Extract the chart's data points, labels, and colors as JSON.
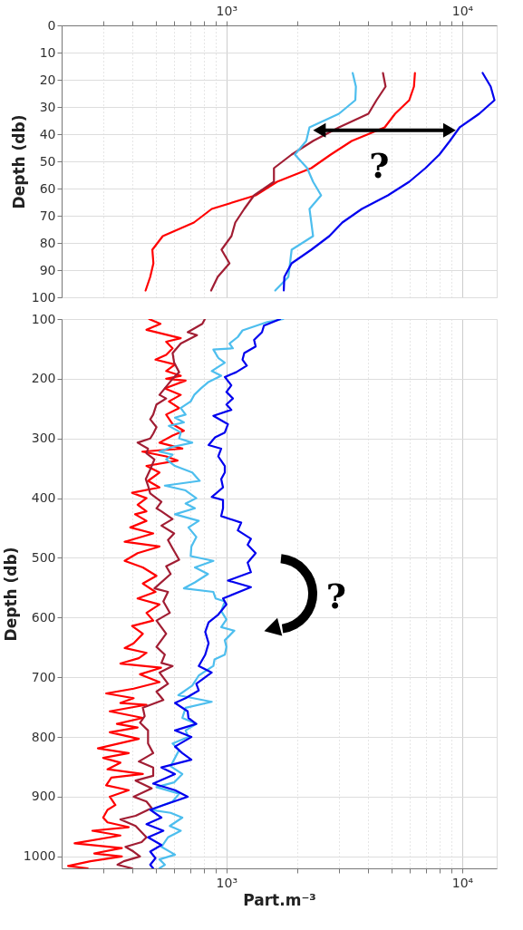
{
  "chart_data": [
    {
      "type": "line",
      "ylabel": "Depth (db)",
      "log": "x",
      "grid": true,
      "marker": "none",
      "line_style": "solid",
      "xlim": [
        200,
        14000
      ],
      "ylim": [
        100,
        0
      ],
      "xticks": [
        {
          "value": 300,
          "label": null
        },
        {
          "value": 400,
          "label": null
        },
        {
          "value": 500,
          "label": null
        },
        {
          "value": 600,
          "label": null
        },
        {
          "value": 700,
          "label": null
        },
        {
          "value": 800,
          "label": null
        },
        {
          "value": 900,
          "label": null
        },
        {
          "value": 1000,
          "label": "10³"
        },
        {
          "value": 2000,
          "label": null
        },
        {
          "value": 3000,
          "label": null
        },
        {
          "value": 4000,
          "label": null
        },
        {
          "value": 5000,
          "label": null
        },
        {
          "value": 6000,
          "label": null
        },
        {
          "value": 7000,
          "label": null
        },
        {
          "value": 8000,
          "label": null
        },
        {
          "value": 9000,
          "label": null
        },
        {
          "value": 10000,
          "label": "10⁴"
        }
      ],
      "yticks": [
        0,
        10,
        20,
        30,
        40,
        50,
        60,
        70,
        80,
        90,
        100
      ],
      "annotations": [
        "?"
      ],
      "series": [
        {
          "color": "#ff0000",
          "x": [
            6300,
            6240,
            5960,
            5190,
            4690,
            3400,
            2770,
            2290,
            1640,
            1330,
            866,
            728,
            537,
            485,
            490,
            475,
            454
          ],
          "values": [
            17.5,
            22.5,
            27.5,
            32.5,
            37.5,
            42.5,
            47.5,
            52.5,
            57.5,
            62.5,
            67.5,
            72.5,
            77.5,
            82.5,
            87.5,
            92.5,
            97.5
          ]
        },
        {
          "color": "#a11d33",
          "x": [
            4610,
            4730,
            4330,
            4000,
            3000,
            2330,
            1890,
            1590,
            1590,
            1310,
            1190,
            1090,
            1050,
            953,
            1030,
            918,
            861
          ],
          "values": [
            17.5,
            22.5,
            27.5,
            32.5,
            37.5,
            42.5,
            47.5,
            52.5,
            57.5,
            62.5,
            67.5,
            72.5,
            77.5,
            82.5,
            87.5,
            92.5,
            97.5
          ]
        },
        {
          "color": "#4dbeee",
          "x": [
            3430,
            3540,
            3520,
            3000,
            2250,
            2180,
            1950,
            2200,
            2330,
            2520,
            2250,
            2290,
            2330,
            1890,
            1860,
            1830,
            1610
          ],
          "values": [
            17.5,
            22.5,
            27.5,
            32.5,
            37.5,
            42.5,
            47.5,
            52.5,
            57.5,
            62.5,
            67.5,
            72.5,
            77.5,
            82.5,
            87.5,
            92.5,
            97.5
          ]
        },
        {
          "color": "#0000ee",
          "x": [
            12200,
            13200,
            13700,
            11800,
            9750,
            8860,
            8000,
            6980,
            5960,
            4840,
            3750,
            3100,
            2730,
            2290,
            1890,
            1760,
            1750
          ],
          "values": [
            17.5,
            22.5,
            27.5,
            32.5,
            37.5,
            42.5,
            47.5,
            52.5,
            57.5,
            62.5,
            67.5,
            72.5,
            77.5,
            82.5,
            87.5,
            92.5,
            97.5
          ]
        }
      ]
    },
    {
      "type": "line",
      "xlabel": "Part.m⁻³",
      "ylabel": "Depth (db)",
      "log": "x",
      "grid": true,
      "marker": "none",
      "line_style": "solid",
      "xlim": [
        200,
        14000
      ],
      "ylim": [
        1020,
        100
      ],
      "xticks": [
        {
          "value": 300,
          "label": null
        },
        {
          "value": 400,
          "label": null
        },
        {
          "value": 500,
          "label": null
        },
        {
          "value": 600,
          "label": null
        },
        {
          "value": 700,
          "label": null
        },
        {
          "value": 800,
          "label": null
        },
        {
          "value": 900,
          "label": null
        },
        {
          "value": 1000,
          "label": "10³"
        },
        {
          "value": 2000,
          "label": null
        },
        {
          "value": 3000,
          "label": null
        },
        {
          "value": 4000,
          "label": null
        },
        {
          "value": 5000,
          "label": null
        },
        {
          "value": 6000,
          "label": null
        },
        {
          "value": 7000,
          "label": null
        },
        {
          "value": 8000,
          "label": null
        },
        {
          "value": 9000,
          "label": null
        },
        {
          "value": 10000,
          "label": "10⁴"
        }
      ],
      "yticks": [
        100,
        200,
        300,
        400,
        500,
        600,
        700,
        800,
        900,
        1000
      ],
      "annotations": [
        "?"
      ],
      "series": [
        {
          "color": "#ff0000",
          "x": [
            470,
            525,
            458,
            640,
            555,
            591,
            555,
            500,
            605,
            555,
            640,
            555,
            671,
            548,
            640,
            570,
            630,
            555,
            591,
            660,
            591,
            520,
            650,
            440,
            555,
            620,
            458,
            520,
            465,
            520,
            398,
            458,
            420,
            458,
            410,
            458,
            391,
            489,
            370,
            520,
            420,
            370,
            442,
            505,
            442,
            500,
            420,
            520,
            458,
            489,
            398,
            442,
            404,
            370,
            458,
            425,
            355,
            528,
            430,
            520,
            404,
            309,
            404,
            355,
            458,
            320,
            442,
            343,
            420,
            320,
            425,
            285,
            385,
            300,
            355,
            313,
            442,
            325,
            309,
            385,
            320,
            338,
            313,
            300,
            313,
            385,
            270,
            355,
            227,
            360,
            275,
            360,
            265,
            213,
            258
          ],
          "values": [
            100,
            108,
            118,
            132,
            138,
            149,
            160,
            168,
            176,
            187,
            195,
            200,
            203,
            216,
            227,
            238,
            249,
            260,
            276,
            287,
            295,
            307,
            317,
            322,
            330,
            337,
            346,
            357,
            371,
            382,
            391,
            400,
            411,
            422,
            427,
            438,
            449,
            459,
            473,
            481,
            492,
            505,
            516,
            530,
            543,
            557,
            568,
            578,
            592,
            605,
            614,
            627,
            643,
            651,
            659,
            668,
            677,
            684,
            695,
            708,
            719,
            727,
            735,
            743,
            746,
            757,
            768,
            778,
            784,
            792,
            803,
            819,
            827,
            835,
            843,
            854,
            862,
            868,
            881,
            889,
            900,
            914,
            922,
            935,
            943,
            951,
            957,
            965,
            978,
            986,
            995,
            1000,
            1008,
            1016,
            1020
          ]
        },
        {
          "color": "#a11d33",
          "x": [
            810,
            790,
            685,
            750,
            640,
            591,
            600,
            630,
            591,
            548,
            520,
            555,
            505,
            489,
            475,
            505,
            489,
            475,
            420,
            465,
            458,
            495,
            475,
            455,
            465,
            475,
            530,
            505,
            530,
            591,
            530,
            600,
            565,
            591,
            630,
            555,
            580,
            495,
            565,
            540,
            575,
            505,
            555,
            505,
            548,
            530,
            591,
            520,
            565,
            505,
            540,
            442,
            450,
            430,
            465,
            465,
            489,
            425,
            489,
            489,
            412,
            482,
            404,
            458,
            482,
            412,
            355,
            412,
            458,
            437,
            373,
            404,
            430,
            367,
            345,
            398
          ],
          "values": [
            100,
            108,
            122,
            127,
            141,
            157,
            173,
            189,
            200,
            216,
            227,
            233,
            243,
            260,
            268,
            281,
            292,
            300,
            307,
            317,
            325,
            335,
            352,
            368,
            379,
            392,
            406,
            417,
            422,
            435,
            446,
            459,
            470,
            484,
            503,
            514,
            527,
            551,
            557,
            573,
            592,
            605,
            627,
            649,
            662,
            676,
            681,
            692,
            711,
            724,
            738,
            751,
            765,
            776,
            789,
            811,
            827,
            841,
            851,
            865,
            873,
            886,
            900,
            908,
            919,
            932,
            938,
            949,
            968,
            976,
            984,
            992,
            1000,
            1008,
            1014,
            1020
          ]
        },
        {
          "color": "#4dbeee",
          "x": [
            1740,
            1490,
            1170,
            1117,
            1030,
            1065,
            880,
            923,
            984,
            866,
            950,
            835,
            780,
            730,
            705,
            640,
            671,
            605,
            660,
            570,
            640,
            630,
            716,
            591,
            520,
            591,
            555,
            605,
            716,
            770,
            548,
            671,
            745,
            671,
            735,
            605,
            763,
            690,
            745,
            710,
            705,
            880,
            735,
            835,
            735,
            660,
            880,
            900,
            984,
            950,
            1000,
            950,
            1080,
            984,
            1000,
            984,
            890,
            880,
            763,
            716,
            625,
            866,
            671,
            650,
            745,
            671,
            690,
            591,
            630,
            605,
            580,
            650,
            600,
            505,
            630,
            591,
            475,
            580,
            650,
            575,
            640,
            565,
            530,
            605,
            520,
            548,
            520
          ],
          "values": [
            100,
            105,
            119,
            130,
            141,
            149,
            151,
            165,
            173,
            187,
            195,
            206,
            216,
            227,
            238,
            249,
            260,
            265,
            273,
            279,
            290,
            300,
            307,
            314,
            322,
            327,
            335,
            346,
            357,
            371,
            379,
            387,
            400,
            409,
            417,
            427,
            438,
            449,
            465,
            481,
            497,
            505,
            516,
            527,
            541,
            551,
            557,
            568,
            573,
            589,
            603,
            616,
            622,
            638,
            649,
            662,
            670,
            681,
            697,
            714,
            730,
            741,
            751,
            768,
            778,
            789,
            800,
            811,
            822,
            835,
            849,
            862,
            876,
            884,
            895,
            908,
            922,
            927,
            935,
            949,
            957,
            968,
            984,
            997,
            1005,
            1014,
            1020
          ]
        },
        {
          "color": "#0000ee",
          "x": [
            1690,
            1442,
            1415,
            1310,
            1330,
            1190,
            1170,
            1220,
            1100,
            984,
            1049,
            1000,
            1065,
            1000,
            1049,
            880,
            1015,
            984,
            895,
            840,
            950,
            923,
            984,
            984,
            950,
            967,
            866,
            967,
            967,
            950,
            1155,
            1117,
            1270,
            1230,
            1330,
            1230,
            1270,
            1015,
            1270,
            967,
            1000,
            923,
            840,
            813,
            840,
            813,
            763,
            866,
            745,
            763,
            671,
            605,
            685,
            690,
            745,
            605,
            710,
            605,
            650,
            710,
            530,
            605,
            489,
            605,
            685,
            540,
            475,
            530,
            458,
            540,
            465,
            530,
            475,
            500,
            475,
            489
          ],
          "values": [
            100,
            111,
            122,
            135,
            146,
            157,
            168,
            178,
            189,
            197,
            211,
            222,
            233,
            243,
            252,
            262,
            276,
            290,
            298,
            311,
            317,
            330,
            346,
            357,
            368,
            382,
            398,
            403,
            417,
            430,
            441,
            454,
            468,
            478,
            492,
            508,
            524,
            538,
            549,
            568,
            578,
            595,
            608,
            624,
            643,
            662,
            681,
            692,
            711,
            722,
            735,
            743,
            757,
            768,
            778,
            789,
            800,
            816,
            827,
            838,
            851,
            862,
            878,
            889,
            900,
            914,
            922,
            935,
            946,
            957,
            968,
            981,
            992,
            1003,
            1014,
            1020
          ]
        }
      ]
    }
  ]
}
